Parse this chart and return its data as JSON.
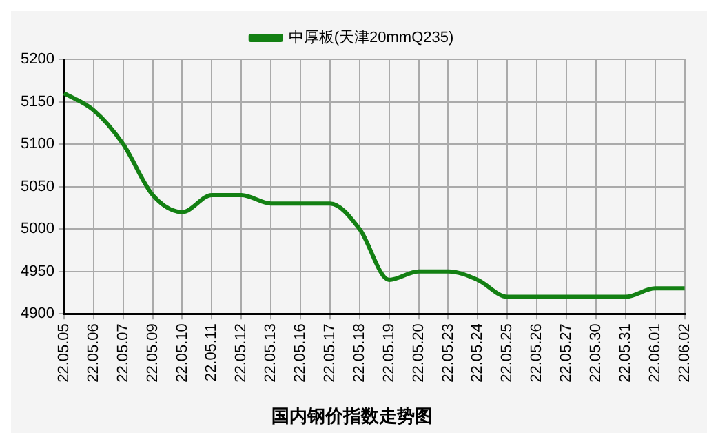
{
  "chart_data": {
    "type": "line",
    "title": "国内钢价指数走势图",
    "categories": [
      "22.05.05",
      "22.05.06",
      "22.05.07",
      "22.05.09",
      "22.05.10",
      "22.05.11",
      "22.05.12",
      "22.05.13",
      "22.05.16",
      "22.05.17",
      "22.05.18",
      "22.05.19",
      "22.05.20",
      "22.05.23",
      "22.05.24",
      "22.05.25",
      "22.05.26",
      "22.05.27",
      "22.05.30",
      "22.05.31",
      "22.06.01",
      "22.06.02"
    ],
    "series": [
      {
        "name": "中厚板(天津20mmQ235)",
        "color": "#138013",
        "values": [
          5160,
          5140,
          5100,
          5040,
          5020,
          5040,
          5040,
          5030,
          5030,
          5030,
          5000,
          4940,
          4950,
          4950,
          4940,
          4920,
          4920,
          4920,
          4920,
          4920,
          4930,
          4930
        ]
      }
    ],
    "ylim": [
      4900,
      5200
    ],
    "yticks": [
      4900,
      4950,
      5000,
      5050,
      5100,
      5150,
      5200
    ],
    "grid": true,
    "legend": "top",
    "marker": "none",
    "line_style": "solid"
  }
}
